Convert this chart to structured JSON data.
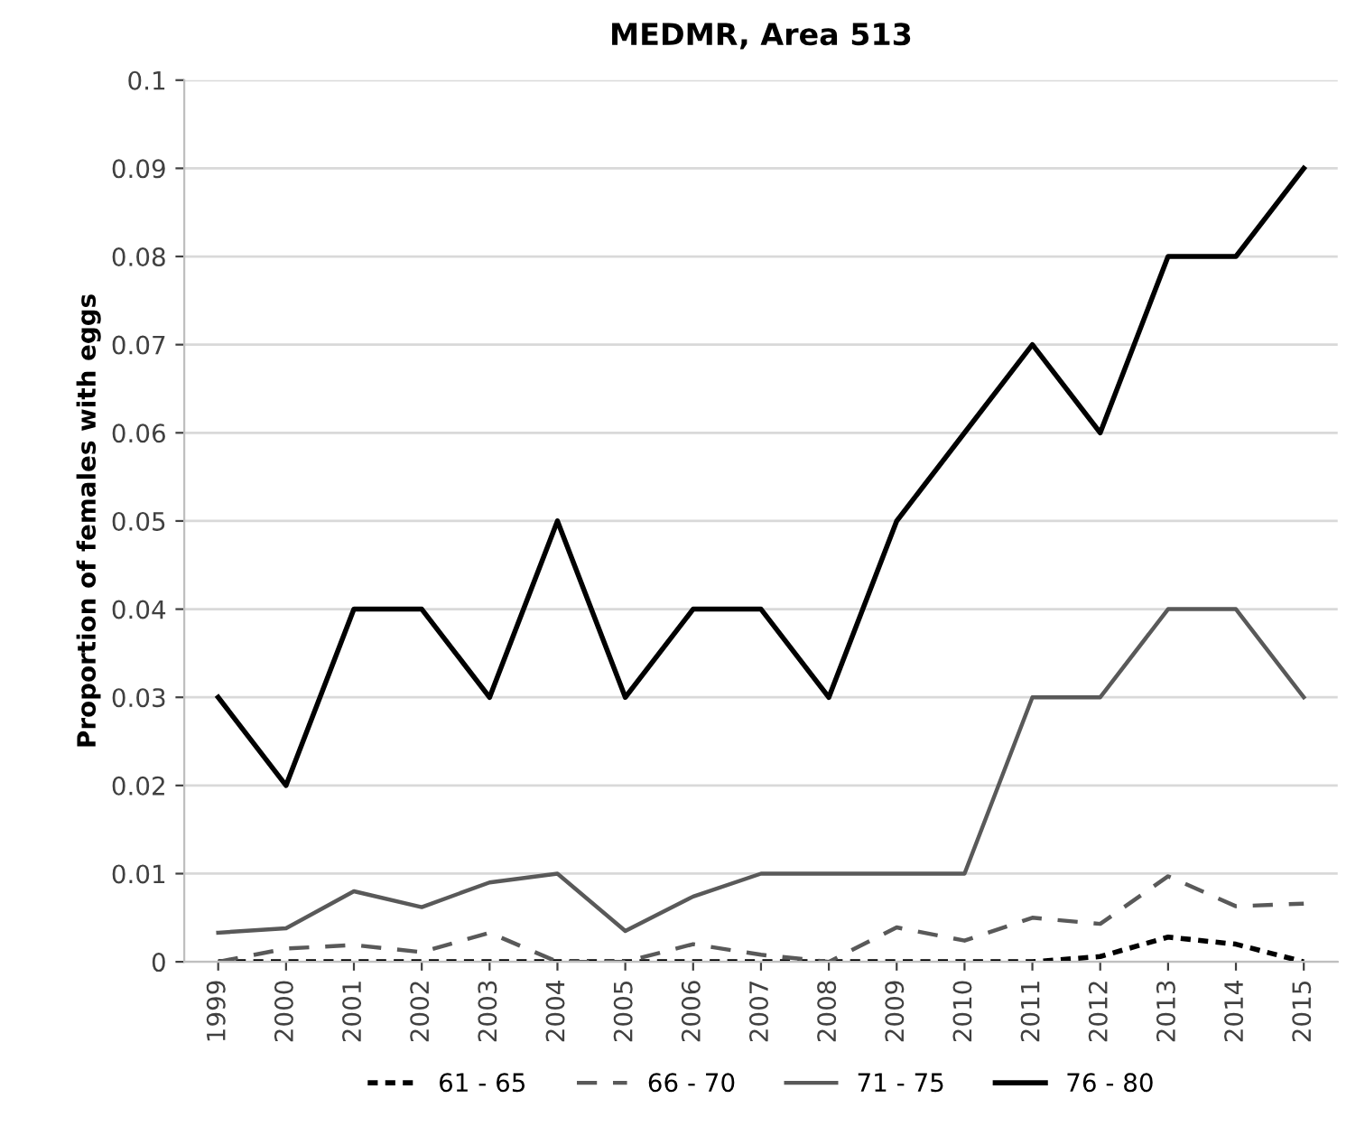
{
  "chart_data": {
    "type": "line",
    "title": "MEDMR, Area 513",
    "ylabel": "Proportion of females with eggs",
    "categories": [
      "1999",
      "2000",
      "2001",
      "2002",
      "2003",
      "2004",
      "2005",
      "2006",
      "2007",
      "2008",
      "2009",
      "2010",
      "2011",
      "2012",
      "2013",
      "2014",
      "2015"
    ],
    "series": [
      {
        "name": "61 - 65",
        "color": "#000000",
        "line_style": "dotted",
        "values": [
          0,
          0,
          0,
          0,
          0,
          0,
          0,
          0,
          0,
          0,
          0,
          0,
          0,
          0.0006,
          0.0028,
          0.002,
          0
        ]
      },
      {
        "name": "66 - 70",
        "color": "#595959",
        "line_style": "dashed",
        "values": [
          0,
          0.0015,
          0.0019,
          0.0011,
          0.0033,
          0,
          0,
          0.002,
          0.0008,
          0,
          0.0039,
          0.0024,
          0.005,
          0.0043,
          0.0097,
          0.0063,
          0.0066
        ]
      },
      {
        "name": "71 - 75",
        "color": "#595959",
        "line_style": "solid",
        "values": [
          0.0033,
          0.0038,
          0.008,
          0.0062,
          0.009,
          0.01,
          0.0035,
          0.0074,
          0.01,
          0.01,
          0.01,
          0.01,
          0.03,
          0.03,
          0.04,
          0.04,
          0.03
        ]
      },
      {
        "name": "76 - 80",
        "color": "#000000",
        "line_style": "solid",
        "values": [
          0.03,
          0.02,
          0.04,
          0.04,
          0.03,
          0.05,
          0.03,
          0.04,
          0.04,
          0.03,
          0.05,
          0.06,
          0.07,
          0.06,
          0.08,
          0.08,
          0.09
        ]
      }
    ],
    "ylim": [
      0,
      0.1
    ],
    "yticks": [
      0,
      0.01,
      0.02,
      0.03,
      0.04,
      0.05,
      0.06,
      0.07,
      0.08,
      0.09,
      0.1
    ],
    "grid": "y",
    "legend": "bottom"
  }
}
